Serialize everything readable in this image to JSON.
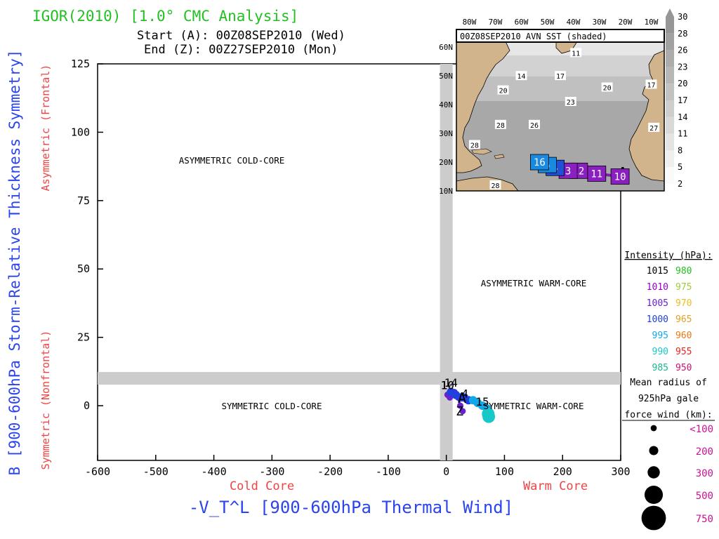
{
  "header": {
    "title": "IGOR(2010) [1.0° CMC Analysis]",
    "start_line": "Start (A): 00Z08SEP2010 (Wed)",
    "end_line": "End (Z): 00Z27SEP2010 (Mon)"
  },
  "colors": {
    "title": "#22c022",
    "axis_label": "#2a44ee",
    "region_label": "#ee4444",
    "guide_band": "#cccccc",
    "land": "#d2b48c"
  },
  "chart_data": [
    {
      "type": "scatter",
      "title": "",
      "xlabel": "-V_T^L [900-600hPa Thermal Wind]",
      "ylabel": "B [900-600hPa Storm-Relative Thickness Symmetry]",
      "xlim": [
        -600,
        300
      ],
      "ylim": [
        -20,
        125
      ],
      "xticks": [
        "-600",
        "-500",
        "-400",
        "-300",
        "-200",
        "-100",
        "0",
        "100",
        "200",
        "300"
      ],
      "yticks": [
        "0",
        "25",
        "50",
        "75",
        "100",
        "125"
      ],
      "x_side_labels": {
        "left": "Cold Core",
        "right": "Warm Core"
      },
      "y_side_labels": {
        "top": "Asymmetric (Frontal)",
        "bottom": "Symmetric (Nonfrontal)"
      },
      "quadrant_labels": {
        "upper_left": "ASYMMETRIC COLD-CORE",
        "upper_right": "ASYMMETRIC WARM-CORE",
        "lower_left": "SYMMETRIC COLD-CORE",
        "lower_right": "SYMMETRIC WARM-CORE"
      },
      "guide_lines": {
        "x": 0,
        "y": 10
      },
      "grid": false,
      "track": {
        "points": [
          {
            "x": 28,
            "y": -2,
            "pressure": 1007,
            "size": 200
          },
          {
            "x": 24,
            "y": 0,
            "pressure": 1005,
            "size": 200
          },
          {
            "x": 20,
            "y": 3,
            "pressure": 1006,
            "size": 200
          },
          {
            "x": 14,
            "y": 5,
            "pressure": 1004,
            "size": 200
          },
          {
            "x": 10,
            "y": 4,
            "pressure": 1004,
            "size": 200
          },
          {
            "x": 6,
            "y": 3,
            "pressure": 1004,
            "size": 200
          },
          {
            "x": 2,
            "y": 4,
            "pressure": 1004,
            "size": 200
          },
          {
            "x": 8,
            "y": 5,
            "pressure": 1002,
            "size": 300
          },
          {
            "x": 16,
            "y": 4,
            "pressure": 1002,
            "size": 300
          },
          {
            "x": 24,
            "y": 3,
            "pressure": 1002,
            "size": 300
          },
          {
            "x": 30,
            "y": 3,
            "pressure": 1000,
            "size": 300
          },
          {
            "x": 38,
            "y": 2,
            "pressure": 998,
            "size": 300
          },
          {
            "x": 46,
            "y": 2,
            "pressure": 997,
            "size": 300
          },
          {
            "x": 54,
            "y": 1,
            "pressure": 996,
            "size": 300
          },
          {
            "x": 62,
            "y": 0,
            "pressure": 995,
            "size": 300
          },
          {
            "x": 70,
            "y": -1,
            "pressure": 993,
            "size": 300
          },
          {
            "x": 72,
            "y": -3,
            "pressure": 991,
            "size": 500
          },
          {
            "x": 73,
            "y": -4,
            "pressure": 989,
            "size": 500
          }
        ],
        "start_marker": {
          "label": "A",
          "x": 27,
          "y": 1
        },
        "end_marker": {
          "label": "Z",
          "x": 23,
          "y": -1
        },
        "date_labels": [
          {
            "text": "14",
            "x": 8,
            "y": 7
          },
          {
            "text": "10",
            "x": 2,
            "y": 6
          },
          {
            "text": "1",
            "x": -4,
            "y": 6
          },
          {
            "text": "4",
            "x": 32,
            "y": 3
          },
          {
            "text": "15",
            "x": 62,
            "y": 0
          }
        ]
      }
    },
    {
      "type": "map",
      "title": "00Z08SEP2010 AVN SST (shaded)",
      "lon_labels": [
        "80W",
        "70W",
        "60W",
        "50W",
        "40W",
        "30W",
        "20W",
        "10W"
      ],
      "lat_labels": [
        "60N",
        "50N",
        "40N",
        "30N",
        "20N",
        "10N"
      ],
      "lon_range": [
        -85,
        -5
      ],
      "lat_range": [
        10,
        62
      ],
      "sst_contour_labels": [
        {
          "text": "11",
          "lon": -39,
          "lat": 58
        },
        {
          "text": "14",
          "lon": -60,
          "lat": 50
        },
        {
          "text": "17",
          "lon": -45,
          "lat": 50
        },
        {
          "text": "20",
          "lon": -67,
          "lat": 45
        },
        {
          "text": "20",
          "lon": -27,
          "lat": 46
        },
        {
          "text": "17",
          "lon": -10,
          "lat": 47
        },
        {
          "text": "23",
          "lon": -41,
          "lat": 41
        },
        {
          "text": "28",
          "lon": -68,
          "lat": 33
        },
        {
          "text": "26",
          "lon": -55,
          "lat": 33
        },
        {
          "text": "27",
          "lon": -9,
          "lat": 32
        },
        {
          "text": "28",
          "lon": -78,
          "lat": 26
        },
        {
          "text": "28",
          "lon": -70,
          "lat": 12
        }
      ],
      "track_labels": [
        {
          "text": "A",
          "lon": -21,
          "lat": 16
        },
        {
          "text": "10",
          "lon": -22,
          "lat": 15
        },
        {
          "text": "11",
          "lon": -31,
          "lat": 16
        },
        {
          "text": "12",
          "lon": -38,
          "lat": 17
        },
        {
          "text": "3",
          "lon": -42,
          "lat": 17
        },
        {
          "text": "4",
          "lon": -47,
          "lat": 18
        },
        {
          "text": "5",
          "lon": -50,
          "lat": 19
        },
        {
          "text": "16",
          "lon": -53,
          "lat": 20
        }
      ],
      "colorbar": {
        "levels": [
          "30",
          "28",
          "26",
          "23",
          "20",
          "17",
          "14",
          "11",
          "8",
          "5",
          "2"
        ]
      }
    }
  ],
  "intensity_legend": {
    "title": "Intensity (hPa):",
    "rows": [
      {
        "left": "1015",
        "left_color": "#000000",
        "right": "980",
        "right_color": "#22c022"
      },
      {
        "left": "1010",
        "left_color": "#9900cc",
        "right": "975",
        "right_color": "#a0d030"
      },
      {
        "left": "1005",
        "left_color": "#6a1fd0",
        "right": "970",
        "right_color": "#e8c020"
      },
      {
        "left": "1000",
        "left_color": "#2040e0",
        "right": "965",
        "right_color": "#e0a020"
      },
      {
        "left": "995",
        "left_color": "#12a8e8",
        "right": "960",
        "right_color": "#ee7711"
      },
      {
        "left": "990",
        "left_color": "#18c8c8",
        "right": "955",
        "right_color": "#ee2222"
      },
      {
        "left": "985",
        "left_color": "#18b890",
        "right": "950",
        "right_color": "#cc1177"
      }
    ]
  },
  "radius_legend": {
    "title": "Mean radius of 925hPa gale force wind (km):",
    "title_lines": [
      "Mean radius of",
      "925hPa gale",
      "force wind (km):"
    ],
    "rows": [
      {
        "label": "<100",
        "size": 100
      },
      {
        "label": "200",
        "size": 200
      },
      {
        "label": "300",
        "size": 300
      },
      {
        "label": "500",
        "size": 500
      },
      {
        "label": "750",
        "size": 750
      }
    ],
    "label_color": "#cc1199"
  }
}
